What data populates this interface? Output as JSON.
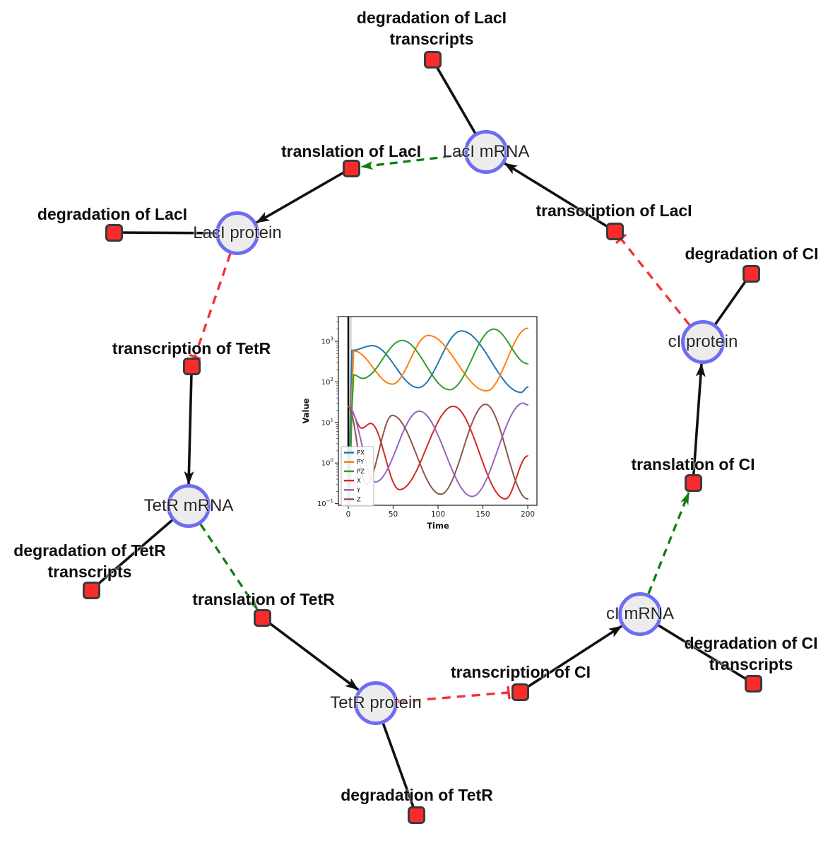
{
  "diagram": {
    "species": [
      {
        "id": "laci-mrna",
        "label": "LacI mRNA"
      },
      {
        "id": "laci-protein",
        "label": "LacI protein"
      },
      {
        "id": "tetr-mrna",
        "label": "TetR mRNA"
      },
      {
        "id": "tetr-protein",
        "label": "TetR protein"
      },
      {
        "id": "ci-mrna",
        "label": "cI mRNA"
      },
      {
        "id": "ci-protein",
        "label": "cI protein"
      }
    ],
    "reactions": [
      {
        "id": "degradation-laci-transcripts",
        "lines": [
          "degradation of LacI",
          "transcripts"
        ]
      },
      {
        "id": "translation-laci",
        "lines": [
          "translation of LacI"
        ]
      },
      {
        "id": "transcription-laci",
        "lines": [
          "transcription of LacI"
        ]
      },
      {
        "id": "degradation-laci",
        "lines": [
          "degradation of LacI"
        ]
      },
      {
        "id": "degradation-ci",
        "lines": [
          "degradation of CI"
        ]
      },
      {
        "id": "transcription-tetr",
        "lines": [
          "transcription of TetR"
        ]
      },
      {
        "id": "translation-ci",
        "lines": [
          "translation of CI"
        ]
      },
      {
        "id": "degradation-tetr-transcripts",
        "lines": [
          "degradation of TetR",
          "transcripts"
        ]
      },
      {
        "id": "translation-tetr",
        "lines": [
          "translation of TetR"
        ]
      },
      {
        "id": "degradation-ci-transcripts",
        "lines": [
          "degradation of CI",
          "transcripts"
        ]
      },
      {
        "id": "transcription-ci",
        "lines": [
          "transcription of CI"
        ]
      },
      {
        "id": "degradation-tetr",
        "lines": [
          "degradation of TetR"
        ]
      }
    ],
    "colors": {
      "species_fill": "#ececec",
      "species_border": "#6d6df4",
      "reaction_fill": "#fb2b2b",
      "reaction_border": "#3b3b3b",
      "edge_black": "#111111",
      "modifier_green": "#0f7d0f",
      "inhibition_red": "#f23333"
    }
  },
  "chart_data": {
    "type": "line",
    "title": "",
    "xlabel": "Time",
    "ylabel": "Value",
    "x_ticks": [
      0,
      50,
      100,
      150,
      200
    ],
    "y_tick_exponents": [
      -1,
      0,
      1,
      2,
      3
    ],
    "xlim": [
      -10,
      210
    ],
    "ylim_log10": [
      -1.04,
      3.6
    ],
    "y_scale": "log",
    "grid": false,
    "legend_position": "lower left",
    "t0_event_line": 0,
    "t0_shaded_band": [
      0,
      4
    ],
    "series": [
      {
        "name": "PX",
        "color": "#1f77b4",
        "points": [
          [
            0,
            0.05
          ],
          [
            4,
            600
          ],
          [
            27,
            780
          ],
          [
            78,
            72
          ],
          [
            126,
            1800
          ],
          [
            193,
            55
          ],
          [
            200,
            75
          ]
        ]
      },
      {
        "name": "PY",
        "color": "#ff7f0e",
        "points": [
          [
            0,
            0.05
          ],
          [
            6,
            580
          ],
          [
            49,
            88
          ],
          [
            89,
            1400
          ],
          [
            154,
            60
          ],
          [
            200,
            2100
          ]
        ]
      },
      {
        "name": "PZ",
        "color": "#2ca02c",
        "points": [
          [
            0,
            0.05
          ],
          [
            6,
            150
          ],
          [
            16,
            122
          ],
          [
            60,
            1050
          ],
          [
            113,
            64
          ],
          [
            162,
            2000
          ],
          [
            200,
            280
          ]
        ]
      },
      {
        "name": "X",
        "color": "#d62728",
        "points": [
          [
            0,
            25
          ],
          [
            15,
            7.2
          ],
          [
            25,
            9.5
          ],
          [
            57,
            0.22
          ],
          [
            117,
            25
          ],
          [
            175,
            0.13
          ],
          [
            200,
            1.5
          ]
        ]
      },
      {
        "name": "Y",
        "color": "#9467bd",
        "points": [
          [
            0,
            25
          ],
          [
            30,
            0.34
          ],
          [
            79,
            19
          ],
          [
            138,
            0.15
          ],
          [
            195,
            30
          ],
          [
            200,
            27
          ]
        ]
      },
      {
        "name": "Z",
        "color": "#8c564b",
        "points": [
          [
            0,
            25
          ],
          [
            20,
            0.3
          ],
          [
            49,
            15
          ],
          [
            103,
            0.17
          ],
          [
            153,
            28
          ],
          [
            200,
            0.13
          ]
        ]
      }
    ]
  }
}
